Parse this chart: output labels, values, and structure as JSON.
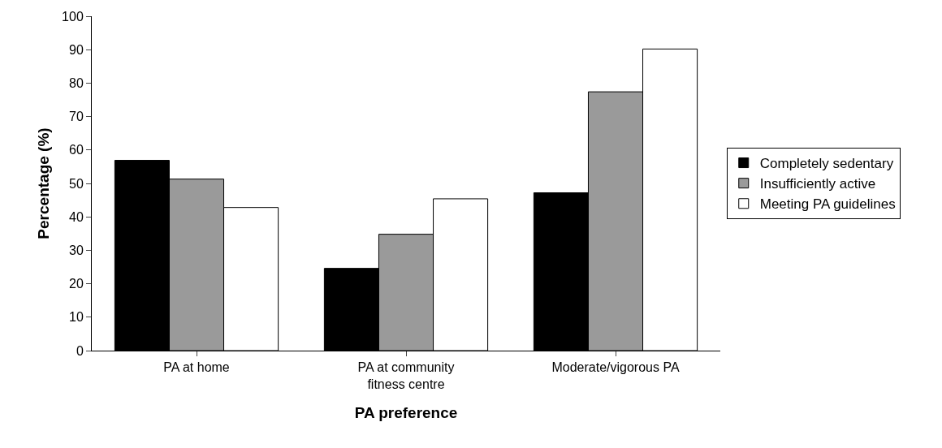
{
  "chart_data": {
    "type": "bar",
    "xlabel": "PA preference",
    "ylabel": "Percentage (%)",
    "categories": [
      "PA at home",
      "PA at community fitness centre",
      "Moderate/vigorous PA"
    ],
    "series": [
      {
        "name": "Completely sedentary",
        "color": "#000000",
        "values": [
          56.9,
          24.6,
          47.2
        ]
      },
      {
        "name": "Insufficiently active",
        "color": "#9a9a9a",
        "values": [
          51.3,
          34.8,
          77.4
        ]
      },
      {
        "name": "Meeting PA guidelines",
        "color": "#ffffff",
        "values": [
          42.8,
          45.4,
          90.2
        ]
      }
    ],
    "ylim": [
      0,
      100
    ],
    "yticks": [
      0,
      10,
      20,
      30,
      40,
      50,
      60,
      70,
      80,
      90,
      100
    ],
    "grid": false,
    "legend": "right"
  }
}
